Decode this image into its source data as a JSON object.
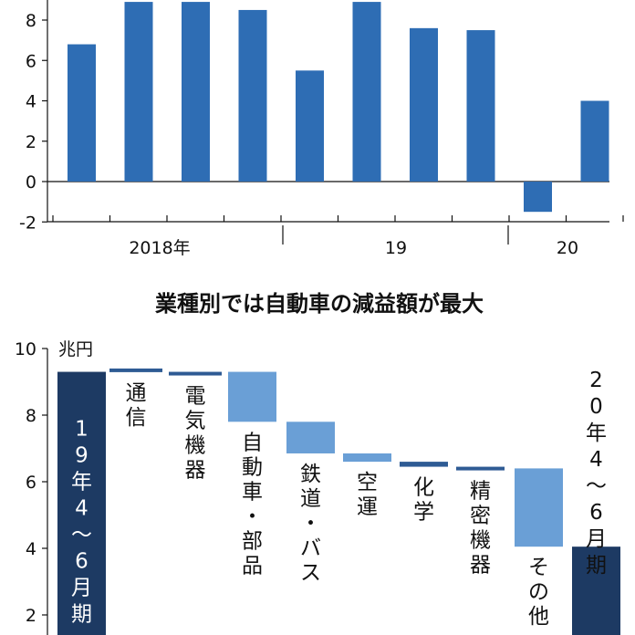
{
  "chart_data": [
    {
      "type": "bar",
      "title": "",
      "x_group_labels": [
        "2018年",
        "19",
        "20"
      ],
      "values": [
        6.8,
        8.9,
        8.9,
        8.5,
        5.5,
        8.9,
        7.6,
        7.5,
        -1.5,
        4.0
      ],
      "ylim": [
        -2,
        9
      ],
      "y_ticks": [
        "8",
        "6",
        "4",
        "2",
        "0",
        "-2"
      ],
      "colors": {
        "bar": "#2e6db4"
      }
    },
    {
      "type": "waterfall",
      "title": "業種別では自動車の減益額が最大",
      "y_unit": "兆円",
      "y_ticks": [
        "10",
        "8",
        "6",
        "4",
        "2"
      ],
      "ylim": [
        1.5,
        10
      ],
      "start": {
        "label": "19年4～6月期",
        "value": 9.3
      },
      "end": {
        "label": "20年4～6月期",
        "value": 4.05
      },
      "categories": [
        "通信",
        "電気機器",
        "自動車・部品",
        "鉄道・バス",
        "空運",
        "化学",
        "精密機器",
        "その他"
      ],
      "steps": [
        {
          "from": 9.4,
          "to": 9.3
        },
        {
          "from": 9.3,
          "to": 9.3
        },
        {
          "from": 9.3,
          "to": 7.8
        },
        {
          "from": 7.8,
          "to": 6.85
        },
        {
          "from": 6.85,
          "to": 6.6
        },
        {
          "from": 6.6,
          "to": 6.45
        },
        {
          "from": 6.45,
          "to": 6.4
        },
        {
          "from": 6.4,
          "to": 4.05
        }
      ],
      "colors": {
        "total": "#1d3a63",
        "decrease": "#6a9fd6",
        "small": "#2e5b94"
      }
    }
  ]
}
